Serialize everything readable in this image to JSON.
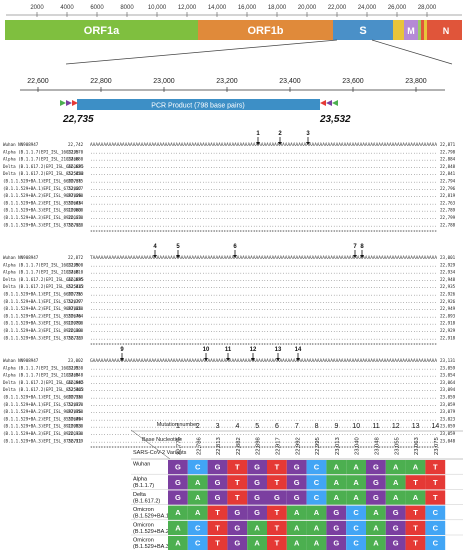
{
  "genome": {
    "ticks": [
      "2000",
      "4000",
      "6000",
      "8000",
      "10,000",
      "12,000",
      "14,000",
      "16,000",
      "18,000",
      "20,000",
      "22,000",
      "24,000",
      "26,000",
      "28,000"
    ],
    "segments": [
      {
        "label": "ORF1a",
        "color": "#7fbf3f"
      },
      {
        "label": "ORF1b",
        "color": "#e08a3a"
      },
      {
        "label": "S",
        "color": "#4a90c8"
      },
      {
        "label": "",
        "color": "#e8c43a"
      },
      {
        "label": "M",
        "color": "#b58ad6"
      },
      {
        "label": "",
        "color": "#6fb36f"
      },
      {
        "label": "N",
        "color": "#e0553a"
      }
    ]
  },
  "zoom": {
    "ticks": [
      "22,600",
      "22,800",
      "23,000",
      "23,200",
      "23,400",
      "23,600",
      "23,800"
    ],
    "pcr_label": "PCR Product (798 base pairs)",
    "start": "22,735",
    "end": "23,532"
  },
  "alignment": {
    "blocks": [
      {
        "start_nums": [
          "22,742",
          "22,670",
          "22,680",
          "22,621",
          "22,650",
          "22,675",
          "22,667",
          "22,690",
          "22,634",
          "22,600",
          "22,670",
          "22,680"
        ],
        "end_nums": [
          "22,871",
          "22,798",
          "22,884",
          "22,848",
          "22,841",
          "22,794",
          "22,796",
          "22,819",
          "22,763",
          "22,789",
          "22,799",
          "22,788"
        ],
        "markers": [
          "1",
          "2",
          "3"
        ]
      },
      {
        "start_nums": [
          "22,872",
          "22,800",
          "22,810",
          "22,835",
          "22,815",
          "22,755",
          "22,797",
          "22,820",
          "22,764",
          "22,790",
          "22,800",
          "22,789"
        ],
        "end_nums": [
          "23,001",
          "22,929",
          "22,934",
          "22,948",
          "22,935",
          "22,926",
          "22,926",
          "22,949",
          "22,893",
          "22,918",
          "22,929",
          "22,918"
        ],
        "markers": [
          "4",
          "5",
          "6",
          "7",
          "8"
        ]
      },
      {
        "start_nums": [
          "23,002",
          "22,930",
          "22,948",
          "22,942",
          "22,965",
          "22,930",
          "22,930",
          "22,950",
          "22,894",
          "22,930",
          "22,930",
          "22,919"
        ],
        "end_nums": [
          "23,131",
          "23,059",
          "23,054",
          "23,064",
          "23,094",
          "23,059",
          "23,059",
          "23,079",
          "23,023",
          "23,059",
          "23,059",
          "23,048"
        ],
        "markers": [
          "9",
          "10",
          "11",
          "12",
          "13",
          "14"
        ]
      }
    ],
    "seq_names": [
      "Wuhan NN908947",
      "Alpha (B.1.1.7)EPI_ISL_1603195",
      "Alpha (B.1.1.7)EPI_ISL_2103468",
      "Delta (B.1.617.2)EPI_ISL_6661895",
      "Delta (B.1.617.2)EPI_ISL_8525443",
      "(B.1.1.529+BA.1)EPI_ISL_6699736",
      "(B.1.1.529+BA.1)EPI_ISL_6752027",
      "(B.1.1.529+BA.2)EPI_ISL_9097026",
      "(B.1.1.529+BA.2)EPI_ISL_8559646",
      "(B.1.1.529+BA.3)EPI_ISL_8919983",
      "(B.1.1.529+BA.3)EPI_ISL_8920133",
      "(B.1.1.529+BA.3)EPI_ISL_8756711"
    ]
  },
  "table": {
    "mutation_label": "Mutation number",
    "base_label": "Base Nucleotide",
    "variants_label": "SARS-CoV-2 Variants",
    "numbers": [
      "1",
      "2",
      "3",
      "4",
      "5",
      "6",
      "7",
      "8",
      "9",
      "10",
      "11",
      "12",
      "13",
      "14"
    ],
    "positions": [
      "22,775",
      "22,786",
      "22,813",
      "22,882",
      "22,898",
      "22,917",
      "22,992",
      "22,995",
      "23,013",
      "23,040",
      "23,048",
      "23,055",
      "23,063",
      "23,075"
    ],
    "rows": [
      {
        "label": "Wuhan",
        "bases": [
          "G",
          "C",
          "G",
          "T",
          "G",
          "T",
          "G",
          "C",
          "A",
          "A",
          "G",
          "A",
          "A",
          "T"
        ]
      },
      {
        "label": "Alpha (B.1.1.7)",
        "bases": [
          "G",
          "A",
          "G",
          "T",
          "G",
          "T",
          "G",
          "C",
          "A",
          "A",
          "G",
          "A",
          "T",
          "T"
        ]
      },
      {
        "label": "Delta (B.1.617.2)",
        "bases": [
          "G",
          "A",
          "G",
          "T",
          "G",
          "G",
          "G",
          "C",
          "A",
          "A",
          "G",
          "A",
          "A",
          "T"
        ]
      },
      {
        "label": "Omicron (B.1.529+BA.1)",
        "bases": [
          "A",
          "A",
          "T",
          "G",
          "G",
          "T",
          "A",
          "A",
          "G",
          "C",
          "A",
          "G",
          "T",
          "C"
        ]
      },
      {
        "label": "Omicron (B.1.529+BA.2)",
        "bases": [
          "A",
          "C",
          "T",
          "G",
          "A",
          "T",
          "A",
          "A",
          "G",
          "C",
          "A",
          "G",
          "T",
          "C"
        ]
      },
      {
        "label": "Omicron (B.1.529+BA.3)",
        "bases": [
          "A",
          "C",
          "T",
          "G",
          "A",
          "T",
          "A",
          "A",
          "G",
          "C",
          "A",
          "G",
          "T",
          "C"
        ]
      }
    ],
    "base_colors": {
      "A": "#4caf50",
      "C": "#42a5f5",
      "G": "#7b3fa0",
      "T": "#e53935"
    }
  }
}
